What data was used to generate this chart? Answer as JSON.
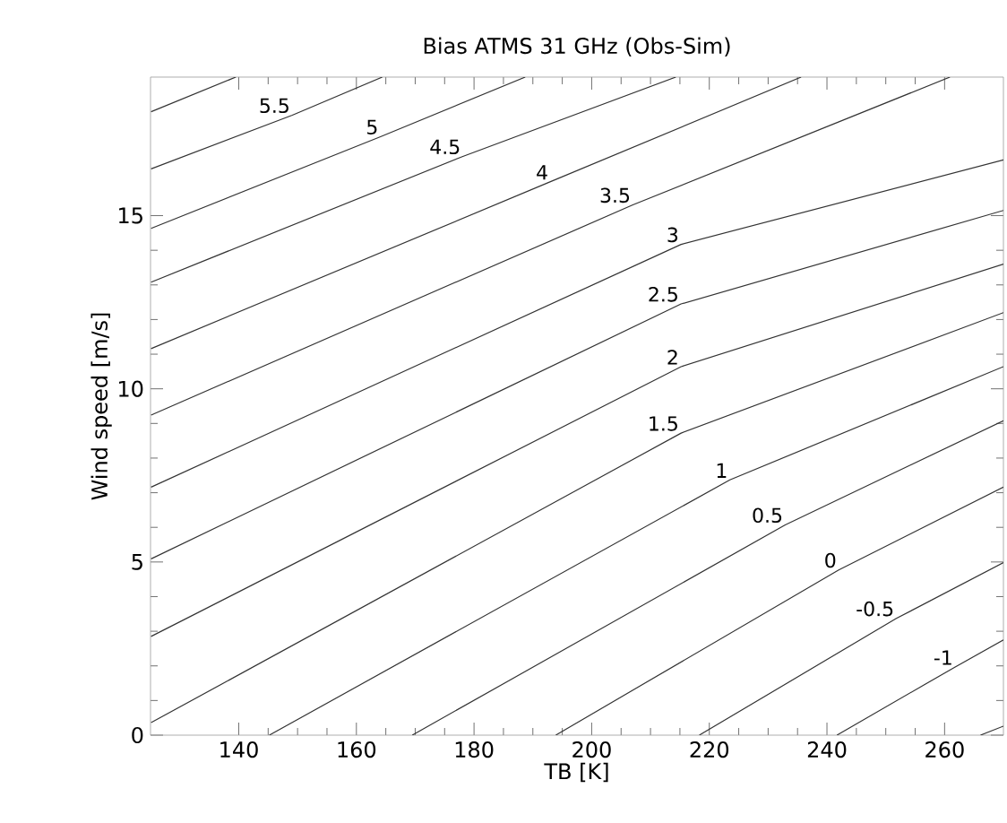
{
  "chart_data": {
    "type": "line",
    "title": "Bias ATMS 31 GHz (Obs-Sim)",
    "xlabel": "TB [K]",
    "ylabel": "Wind speed [m/s]",
    "xlim": [
      125,
      270
    ],
    "ylim": [
      0,
      19
    ],
    "xticks": [
      140,
      160,
      180,
      200,
      220,
      240,
      260
    ],
    "yticks": [
      0,
      5,
      10,
      15
    ],
    "grid": false,
    "marker": "none",
    "line_style": "solid",
    "series": [
      {
        "color": "#333333",
        "x": [
          125.1,
          139.5
        ],
        "values": [
          18.0,
          19
        ]
      },
      {
        "name": "5.5",
        "color": "#333333",
        "x": [
          125.1,
          149.1,
          164.4
        ],
        "values": [
          16.35,
          17.9,
          19
        ]
      },
      {
        "name": "5",
        "color": "#333333",
        "x": [
          125.1,
          164.1,
          188.7
        ],
        "values": [
          14.63,
          17.28,
          19
        ]
      },
      {
        "name": "4.5",
        "color": "#333333",
        "x": [
          125.1,
          178.1,
          214.3
        ],
        "values": [
          13.08,
          16.71,
          19
        ]
      },
      {
        "name": "4",
        "color": "#333333",
        "x": [
          125.1,
          193.0,
          235.6
        ],
        "values": [
          11.16,
          15.98,
          19
        ]
      },
      {
        "name": "3.5",
        "color": "#333333",
        "x": [
          125.1,
          207.0,
          260.9
        ],
        "values": [
          9.24,
          15.31,
          19
        ]
      },
      {
        "name": "3",
        "color": "#333333",
        "x": [
          125.1,
          215.2,
          270
        ],
        "values": [
          7.16,
          14.17,
          16.61
        ]
      },
      {
        "name": "2.5",
        "color": "#333333",
        "x": [
          125.1,
          215.2,
          270
        ],
        "values": [
          5.09,
          12.45,
          15.15
        ]
      },
      {
        "name": "2",
        "color": "#333333",
        "x": [
          125.1,
          215.2,
          270
        ],
        "values": [
          2.85,
          10.64,
          13.6
        ]
      },
      {
        "name": "1.5",
        "color": "#333333",
        "x": [
          125.1,
          215.2,
          270
        ],
        "values": [
          0.36,
          8.72,
          12.2
        ]
      },
      {
        "name": "1",
        "color": "#333333",
        "x": [
          145.2,
          223.5,
          270
        ],
        "values": [
          0,
          7.37,
          10.64
        ]
      },
      {
        "name": "0.5",
        "color": "#333333",
        "x": [
          169.5,
          232.9,
          270
        ],
        "values": [
          0,
          6.07,
          9.08
        ]
      },
      {
        "name": "0",
        "color": "#333333",
        "x": [
          193.9,
          242.0,
          270
        ],
        "values": [
          0,
          4.77,
          7.16
        ]
      },
      {
        "name": "-0.5",
        "color": "#333333",
        "x": [
          218.3,
          251.8,
          270
        ],
        "values": [
          0,
          3.37,
          4.98
        ]
      },
      {
        "name": "-1",
        "color": "#333333",
        "x": [
          241.7,
          261.8,
          270
        ],
        "values": [
          0,
          1.97,
          2.75
        ]
      },
      {
        "color": "#333333",
        "x": [
          266.1,
          270
        ],
        "values": [
          0,
          0.26
        ]
      }
    ]
  }
}
